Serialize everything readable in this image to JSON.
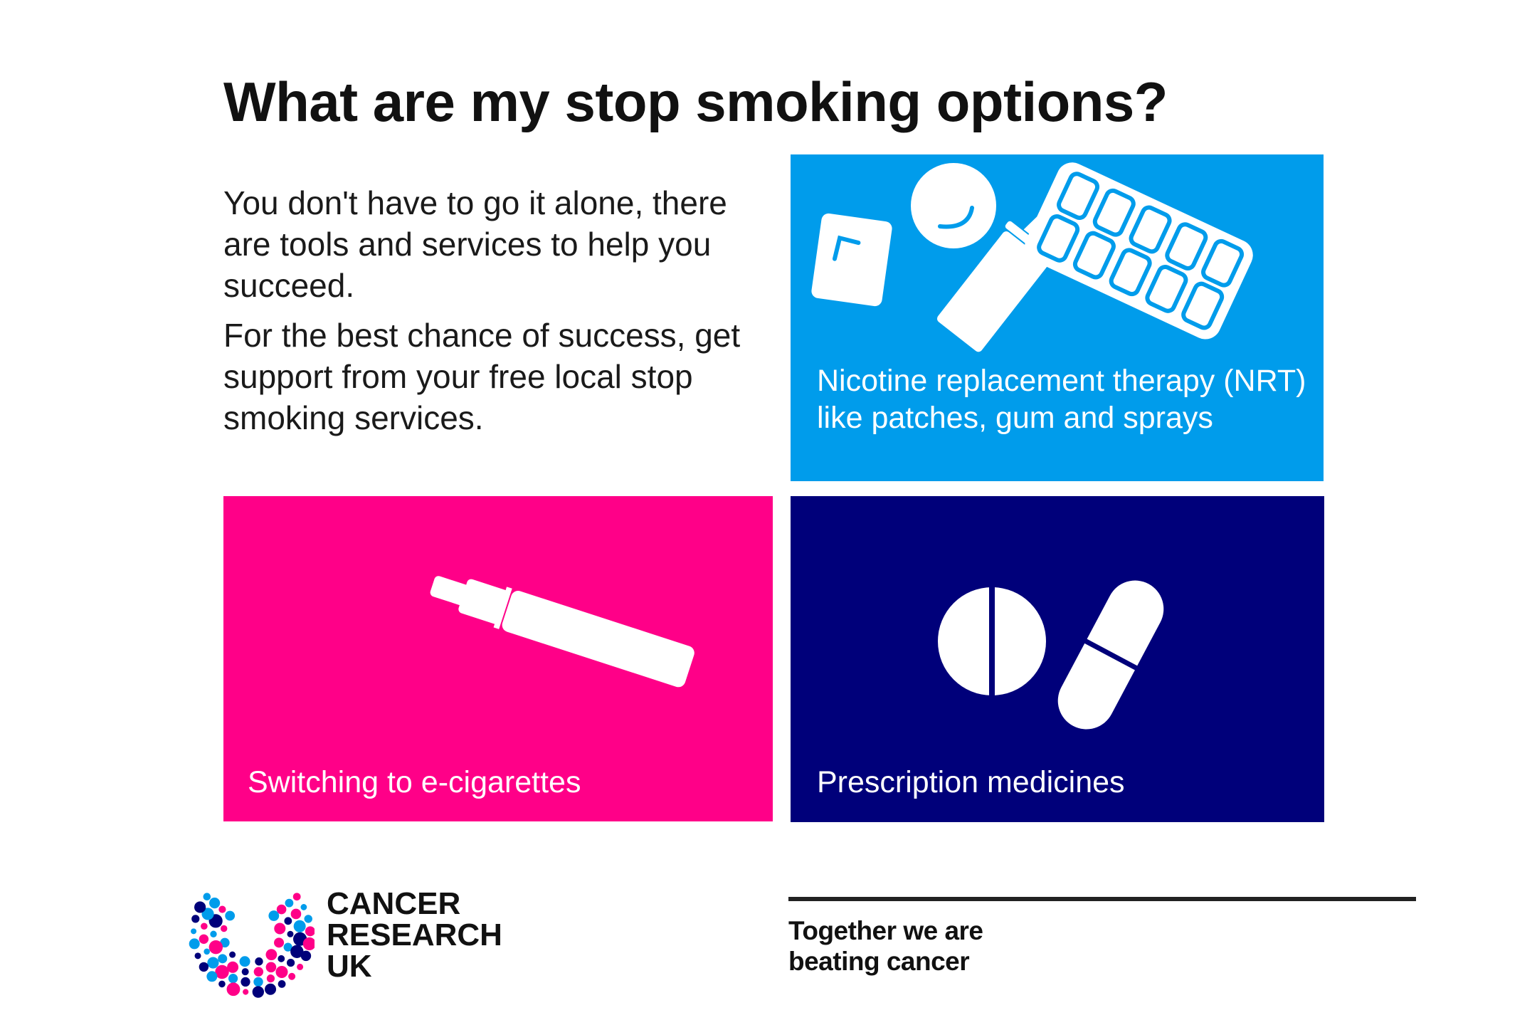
{
  "title": "What are my stop smoking options?",
  "intro": {
    "paragraph1": "You don't have to go it alone, there are tools and services to help you succeed.",
    "paragraph2": "For the best chance of success, get support from your free local stop smoking services."
  },
  "options": [
    {
      "label": "Nicotine replacement therapy (NRT) like patches, gum and sprays",
      "icon": "nrt-products-icon",
      "color": "#009ceb"
    },
    {
      "label": "Switching to e-cigarettes",
      "icon": "e-cigarette-icon",
      "color": "#ff0088"
    },
    {
      "label": "Prescription medicines",
      "icon": "pills-icon",
      "color": "#00007a"
    }
  ],
  "brand": {
    "logo_text": "CANCER RESEARCH UK",
    "logo_lines": [
      "CANCER",
      "RESEARCH",
      "UK"
    ],
    "tagline_lines": [
      "Together we are",
      "beating cancer"
    ],
    "colors": {
      "pink": "#ff0088",
      "blue": "#009ceb",
      "navy": "#00007a"
    }
  }
}
